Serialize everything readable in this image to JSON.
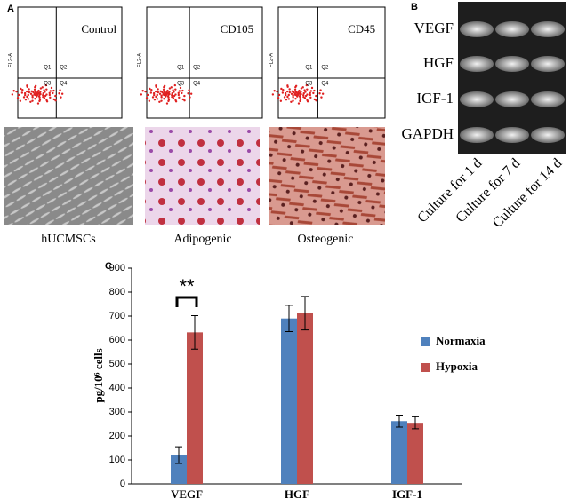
{
  "panel_labels": [
    "A",
    "B",
    "C"
  ],
  "flow_plots": [
    {
      "label": "Control",
      "y_axis": "FL2-A",
      "quadrants": [
        "Q1",
        "Q2",
        "Q3",
        "Q4"
      ]
    },
    {
      "label": "CD105",
      "y_axis": "FL2-A",
      "quadrants": [
        "Q1",
        "Q2",
        "Q3",
        "Q4"
      ]
    },
    {
      "label": "CD45",
      "y_axis": "FL2-A",
      "quadrants": [
        "Q1",
        "Q2",
        "Q3",
        "Q4"
      ]
    }
  ],
  "micrographs": [
    "hUCMSCs",
    "Adipogenic",
    "Osteogenic"
  ],
  "gel": {
    "rows": [
      "VEGF",
      "HGF",
      "IGF-1",
      "GAPDH"
    ],
    "columns": [
      "Culture for 1 d",
      "Culture for 7 d",
      "Culture for 14 d"
    ]
  },
  "chart_data": {
    "type": "bar",
    "ylabel": "pg/10⁶ cells",
    "categories": [
      "VEGF",
      "HGF",
      "IGF-1"
    ],
    "series": [
      {
        "name": "Normaxia",
        "color": "#4f81bd",
        "values": [
          120,
          690,
          262
        ],
        "errors": [
          35,
          55,
          25
        ]
      },
      {
        "name": "Hypoxia",
        "color": "#c0504d",
        "values": [
          632,
          712,
          255
        ],
        "errors": [
          70,
          70,
          25
        ]
      }
    ],
    "ylim": [
      0,
      900
    ],
    "yticks": [
      0,
      100,
      200,
      300,
      400,
      500,
      600,
      700,
      800,
      900
    ],
    "legend": "right",
    "annotation": "**"
  }
}
